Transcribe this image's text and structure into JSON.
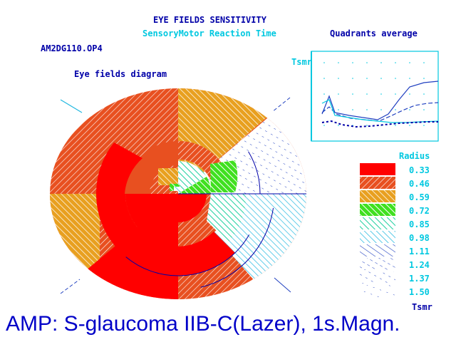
{
  "header": {
    "title": "EYE FIELDS SENSITIVITY",
    "subtitle": "SensoryMotor Reaction Time",
    "file_name": "AM2DG110.OP4"
  },
  "eye_diagram": {
    "label": "Eye fields diagram"
  },
  "quadrants": {
    "label": "Quadrants average",
    "y_label": "Tsmr"
  },
  "legend": {
    "title": "Radius",
    "unit": "Tsmr",
    "values": [
      "0.33",
      "0.46",
      "0.59",
      "0.72",
      "0.85",
      "0.98",
      "1.11",
      "1.24",
      "1.37",
      "1.50"
    ],
    "colors": [
      "#ff0000",
      "#e85020",
      "#e8a020",
      "#40e020",
      "#20e0a0",
      "#20c8e0",
      "#2040c0",
      "#2040c0",
      "#2040c0",
      "#2040c0"
    ]
  },
  "footer": {
    "text": "AMP: S-glaucoma IIB-C(Lazer), 1s.Magn."
  }
}
